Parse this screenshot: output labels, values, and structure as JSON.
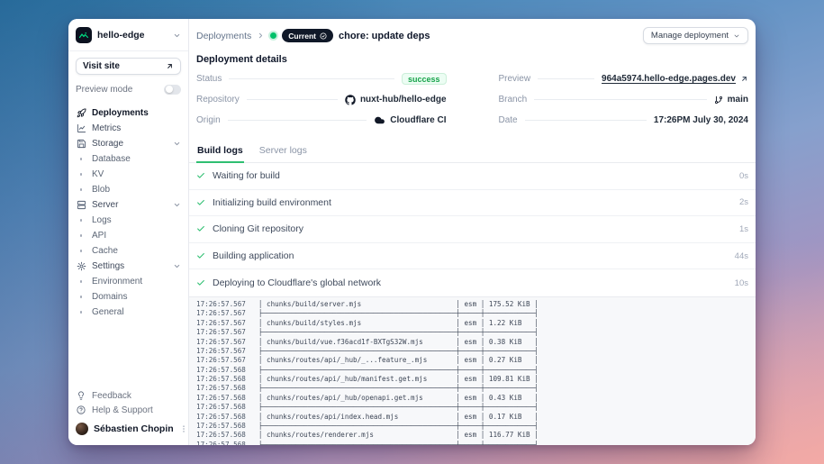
{
  "app": {
    "project": "hello-edge"
  },
  "colors": {
    "accent_green": "#2fbf71",
    "nuxt_green": "#00c16a",
    "badge_dark": "#101828",
    "success_bg": "#ecfdf3",
    "success_text": "#17a34a"
  },
  "icons": {
    "project-logo-icon": "green-mountains-on-dark",
    "chevron-down-icon": "chevron-down",
    "chevron-right-icon": "chevron-right",
    "arrow-up-right-icon": "arrow-up-right",
    "rocket-icon": "rocket",
    "chart-icon": "line-chart",
    "storage-icon": "save-disk",
    "server-icon": "server",
    "gear-icon": "gear",
    "lightbulb-icon": "lightbulb",
    "help-circle-icon": "question-circle",
    "dots-vertical-icon": "kebab-menu",
    "github-icon": "github-mark",
    "cloudflare-icon": "cloud",
    "git-branch-icon": "git-branch",
    "check-circle-icon": "check-in-circle",
    "check-icon": "checkmark",
    "toggle-off": "switch-off"
  },
  "sidebar": {
    "visit_site": "Visit site",
    "preview_mode": "Preview mode",
    "nav": [
      {
        "label": "Deployments",
        "icon": "rocket-icon",
        "active": true
      },
      {
        "label": "Metrics",
        "icon": "chart-icon",
        "active": false
      },
      {
        "label": "Storage",
        "icon": "storage-icon",
        "expanded": true,
        "children": [
          {
            "label": "Database"
          },
          {
            "label": "KV"
          },
          {
            "label": "Blob"
          }
        ]
      },
      {
        "label": "Server",
        "icon": "server-icon",
        "expanded": true,
        "children": [
          {
            "label": "Logs"
          },
          {
            "label": "API"
          },
          {
            "label": "Cache"
          }
        ]
      },
      {
        "label": "Settings",
        "icon": "gear-icon",
        "expanded": true,
        "children": [
          {
            "label": "Environment"
          },
          {
            "label": "Domains"
          },
          {
            "label": "General"
          }
        ]
      }
    ],
    "footer": [
      {
        "label": "Feedback",
        "icon": "lightbulb-icon"
      },
      {
        "label": "Help & Support",
        "icon": "help-circle-icon"
      }
    ],
    "user": {
      "name": "Sébastien Chopin"
    }
  },
  "header": {
    "breadcrumb": "Deployments",
    "badge": "Current",
    "title": "chore: update deps",
    "manage_button": "Manage deployment"
  },
  "details": {
    "heading": "Deployment details",
    "status_label": "Status",
    "status_value": "success",
    "preview_label": "Preview",
    "preview_value": "964a5974.hello-edge.pages.dev",
    "repository_label": "Repository",
    "repository_value": "nuxt-hub/hello-edge",
    "branch_label": "Branch",
    "branch_value": "main",
    "origin_label": "Origin",
    "origin_value": "Cloudflare CI",
    "date_label": "Date",
    "date_value": "17:26PM July 30, 2024"
  },
  "tabs": [
    {
      "label": "Build logs",
      "active": true
    },
    {
      "label": "Server logs",
      "active": false
    }
  ],
  "steps": [
    {
      "label": "Waiting for build",
      "duration": "0s"
    },
    {
      "label": "Initializing build environment",
      "duration": "2s"
    },
    {
      "label": "Cloning Git repository",
      "duration": "1s"
    },
    {
      "label": "Building application",
      "duration": "44s"
    },
    {
      "label": "Deploying to Cloudflare's global network",
      "duration": "10s"
    }
  ],
  "logs": {
    "entries": [
      {
        "time": "17:26:57.567",
        "sep_time": "17:26:57.567",
        "path": "chunks/build/server.mjs",
        "format": "esm",
        "size": "175.52 KiB"
      },
      {
        "time": "17:26:57.567",
        "sep_time": "17:26:57.567",
        "path": "chunks/build/styles.mjs",
        "format": "esm",
        "size": "1.22 KiB"
      },
      {
        "time": "17:26:57.567",
        "sep_time": "17:26:57.567",
        "path": "chunks/build/vue.f36acd1f-BXTgS32W.mjs",
        "format": "esm",
        "size": "0.38 KiB"
      },
      {
        "time": "17:26:57.567",
        "sep_time": "17:26:57.568",
        "path": "chunks/routes/api/_hub/_...feature_.mjs",
        "format": "esm",
        "size": "0.27 KiB"
      },
      {
        "time": "17:26:57.568",
        "sep_time": "17:26:57.568",
        "path": "chunks/routes/api/_hub/manifest.get.mjs",
        "format": "esm",
        "size": "109.81 KiB"
      },
      {
        "time": "17:26:57.568",
        "sep_time": "17:26:57.568",
        "path": "chunks/routes/api/_hub/openapi.get.mjs",
        "format": "esm",
        "size": "0.43 KiB"
      },
      {
        "time": "17:26:57.568",
        "sep_time": "17:26:57.568",
        "path": "chunks/routes/api/index.head.mjs",
        "format": "esm",
        "size": "0.17 KiB"
      },
      {
        "time": "17:26:57.568",
        "sep_time": "17:26:57.568",
        "path": "chunks/routes/renderer.mjs",
        "format": "esm",
        "size": "116.77 KiB"
      }
    ],
    "tail_time": "17:26:57.568"
  }
}
